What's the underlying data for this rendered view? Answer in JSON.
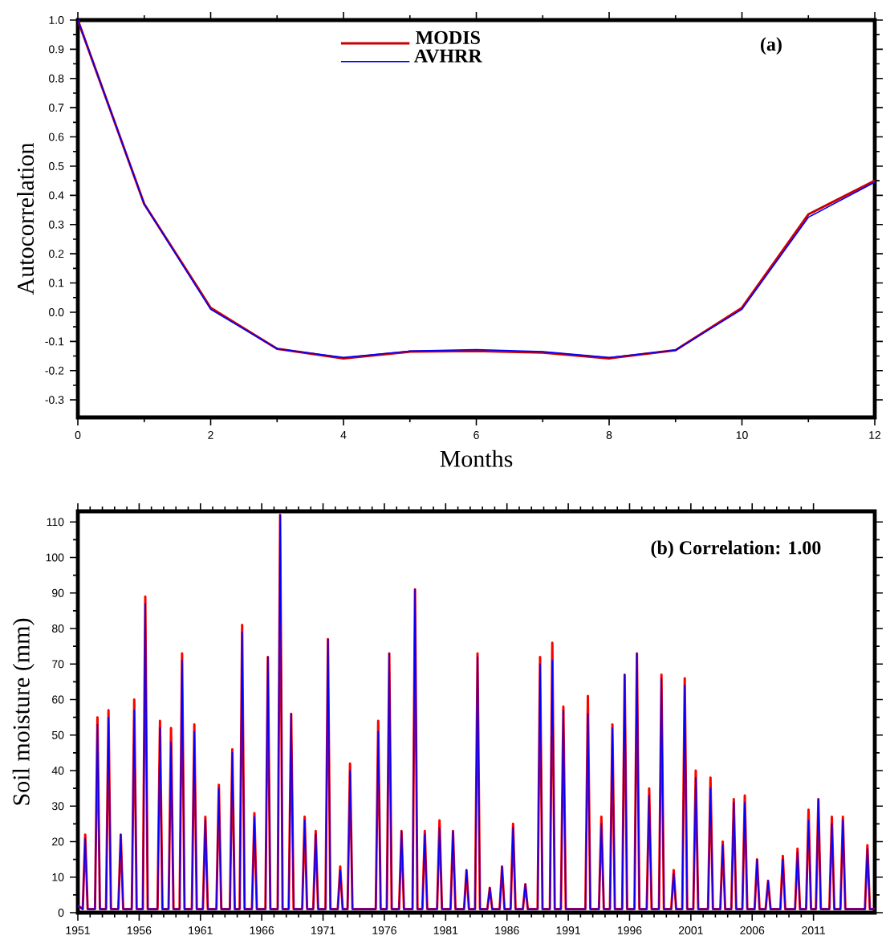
{
  "chart_data": [
    {
      "type": "line",
      "xlabel": "Months",
      "ylabel": "Autocorrelation",
      "annotations": [
        "(a)"
      ],
      "legend": "top",
      "x": [
        0,
        1,
        2,
        3,
        4,
        5,
        6,
        7,
        8,
        9,
        10,
        11,
        12
      ],
      "xlim": [
        0,
        12
      ],
      "xticks": [
        0,
        2,
        4,
        6,
        8,
        10,
        12
      ],
      "ylim": [
        -0.36,
        1.0
      ],
      "yticks": [
        {
          "value": -0.3,
          "label": "-0.3"
        },
        {
          "value": -0.2,
          "label": "-0.2"
        },
        {
          "value": -0.1,
          "label": "-0.1"
        },
        {
          "value": 0,
          "label": "0.0"
        },
        {
          "value": 0.1,
          "label": "0.1"
        },
        {
          "value": 0.2,
          "label": "0.2"
        },
        {
          "value": 0.3,
          "label": "0.3"
        },
        {
          "value": 0.4,
          "label": "0.4"
        },
        {
          "value": 0.5,
          "label": "0.5"
        },
        {
          "value": 0.6,
          "label": "0.6"
        },
        {
          "value": 0.7,
          "label": "0.7"
        },
        {
          "value": 0.8,
          "label": "0.8"
        },
        {
          "value": 0.9,
          "label": "0.9"
        },
        {
          "value": 1.0,
          "label": "1.0"
        }
      ],
      "series": [
        {
          "name": "MODIS",
          "color": "#cc0000",
          "values": [
            1.0,
            0.37,
            0.015,
            -0.125,
            -0.158,
            -0.135,
            -0.133,
            -0.138,
            -0.158,
            -0.13,
            0.015,
            0.335,
            0.45
          ]
        },
        {
          "name": "AVHRR",
          "color": "#0000ff",
          "values": [
            1.0,
            0.37,
            0.01,
            -0.125,
            -0.155,
            -0.133,
            -0.128,
            -0.135,
            -0.155,
            -0.13,
            0.01,
            0.325,
            0.445
          ]
        }
      ]
    },
    {
      "type": "line",
      "ylabel": "Soil moisture (mm)",
      "annotations": [
        "(b) Correlation: 1.00"
      ],
      "x": [
        1951,
        1951.4,
        1951.6,
        1951.8,
        1952.4,
        1952.6,
        1952.8,
        1953.3,
        1953.5,
        1953.7,
        1954.3,
        1954.5,
        1954.7,
        1955.4,
        1955.6,
        1955.8,
        1956.3,
        1956.5,
        1956.7,
        1957.5,
        1957.7,
        1957.9,
        1958.4,
        1958.6,
        1958.8,
        1959.3,
        1959.5,
        1959.7,
        1960.3,
        1960.5,
        1960.7,
        1961.2,
        1961.4,
        1961.6,
        1962.3,
        1962.5,
        1962.7,
        1963.4,
        1963.6,
        1963.8,
        1964.2,
        1964.4,
        1964.6,
        1965.2,
        1965.4,
        1965.6,
        1966.3,
        1966.5,
        1966.7,
        1967.3,
        1967.5,
        1967.7,
        1968.2,
        1968.4,
        1968.6,
        1969.3,
        1969.5,
        1969.7,
        1970.2,
        1970.4,
        1970.6,
        1971.2,
        1971.4,
        1971.6,
        1972.2,
        1972.4,
        1972.6,
        1973.0,
        1973.2,
        1973.4,
        1975.3,
        1975.5,
        1975.7,
        1976.2,
        1976.4,
        1976.6,
        1977.2,
        1977.4,
        1977.6,
        1978.3,
        1978.5,
        1978.7,
        1979.1,
        1979.3,
        1979.5,
        1980.3,
        1980.5,
        1980.7,
        1981.4,
        1981.6,
        1981.8,
        1982.5,
        1982.7,
        1982.9,
        1983.4,
        1983.6,
        1983.8,
        1984.4,
        1984.6,
        1984.8,
        1985.4,
        1985.6,
        1985.8,
        1986.3,
        1986.5,
        1986.7,
        1987.3,
        1987.5,
        1987.7,
        1988.5,
        1988.7,
        1988.9,
        1989.5,
        1989.7,
        1989.9,
        1990.4,
        1990.6,
        1990.8,
        1992.4,
        1992.6,
        1992.8,
        1993.5,
        1993.7,
        1993.9,
        1994.4,
        1994.6,
        1994.8,
        1995.4,
        1995.6,
        1995.8,
        1996.4,
        1996.6,
        1996.8,
        1997.4,
        1997.6,
        1997.8,
        1998.4,
        1998.6,
        1998.8,
        1999.4,
        1999.6,
        1999.8,
        2000.3,
        2000.5,
        2000.7,
        2001.2,
        2001.4,
        2001.6,
        2002.4,
        2002.6,
        2002.8,
        2003.4,
        2003.6,
        2003.8,
        2004.3,
        2004.5,
        2004.7,
        2005.2,
        2005.4,
        2005.6,
        2006.2,
        2006.4,
        2006.6,
        2007.1,
        2007.3,
        2007.5,
        2008.3,
        2008.5,
        2008.7,
        2009.5,
        2009.7,
        2009.9,
        2010.4,
        2010.6,
        2010.8,
        2011.2,
        2011.4,
        2011.6,
        2012.3,
        2012.5,
        2012.7,
        2013.2,
        2013.4,
        2013.6,
        2015.2,
        2015.4,
        2015.6,
        2016
      ],
      "xlim": [
        1951,
        2016
      ],
      "xticks": [
        1951,
        1956,
        1961,
        1966,
        1971,
        1976,
        1981,
        1986,
        1991,
        1996,
        2001,
        2006,
        2011
      ],
      "ylim": [
        0,
        113
      ],
      "yticks": [
        0,
        10,
        20,
        30,
        40,
        50,
        60,
        70,
        80,
        90,
        100,
        110
      ],
      "series": [
        {
          "color": "#ff0000",
          "values": [
            2,
            1,
            22,
            1,
            1,
            55,
            1,
            1,
            57,
            1,
            1,
            22,
            1,
            1,
            60,
            1,
            1,
            89,
            1,
            1,
            54,
            1,
            1,
            52,
            1,
            1,
            73,
            1,
            1,
            53,
            1,
            1,
            27,
            1,
            1,
            36,
            1,
            1,
            46,
            1,
            1,
            81,
            1,
            1,
            28,
            1,
            1,
            72,
            1,
            1,
            112,
            1,
            1,
            56,
            1,
            1,
            27,
            1,
            1,
            23,
            1,
            1,
            77,
            1,
            1,
            13,
            1,
            1,
            42,
            1,
            1,
            54,
            1,
            1,
            73,
            1,
            1,
            23,
            1,
            1,
            91,
            1,
            1,
            23,
            1,
            1,
            26,
            1,
            1,
            23,
            1,
            1,
            12,
            1,
            1,
            73,
            1,
            1,
            7,
            1,
            1,
            13,
            1,
            1,
            25,
            1,
            1,
            8,
            1,
            1,
            72,
            1,
            1,
            76,
            1,
            1,
            58,
            1,
            1,
            61,
            1,
            1,
            27,
            1,
            1,
            53,
            1,
            1,
            67,
            1,
            1,
            73,
            1,
            1,
            35,
            1,
            1,
            67,
            1,
            1,
            12,
            1,
            1,
            66,
            1,
            1,
            40,
            1,
            1,
            38,
            1,
            1,
            20,
            1,
            1,
            32,
            1,
            1,
            33,
            1,
            1,
            15,
            1,
            1,
            9,
            1,
            1,
            16,
            1,
            1,
            18,
            1,
            1,
            29,
            1,
            1,
            32,
            1,
            1,
            27,
            1,
            1,
            27,
            1,
            1,
            19,
            1,
            1
          ]
        },
        {
          "color": "#0000ff",
          "values": [
            2,
            1,
            21,
            1,
            1,
            53,
            1,
            1,
            55,
            1,
            1,
            22,
            1,
            1,
            57,
            1,
            1,
            87,
            1,
            1,
            52,
            1,
            1,
            48,
            1,
            1,
            71,
            1,
            1,
            51,
            1,
            1,
            26,
            1,
            1,
            35,
            1,
            1,
            45,
            1,
            1,
            79,
            1,
            1,
            27,
            1,
            1,
            72,
            1,
            1,
            112,
            1,
            1,
            56,
            1,
            1,
            26,
            1,
            1,
            22,
            1,
            1,
            77,
            1,
            1,
            12,
            1,
            1,
            40,
            1,
            1,
            51,
            1,
            1,
            73,
            1,
            1,
            23,
            1,
            1,
            91,
            1,
            1,
            22,
            1,
            1,
            24,
            1,
            1,
            23,
            1,
            1,
            12,
            1,
            1,
            72,
            1,
            1,
            7,
            1,
            1,
            13,
            1,
            1,
            24,
            1,
            1,
            8,
            1,
            1,
            70,
            1,
            1,
            71,
            1,
            1,
            57,
            1,
            1,
            56,
            1,
            1,
            25,
            1,
            1,
            52,
            1,
            1,
            67,
            1,
            1,
            73,
            1,
            1,
            33,
            1,
            1,
            66,
            1,
            1,
            11,
            1,
            1,
            64,
            1,
            1,
            38,
            1,
            1,
            35,
            1,
            1,
            19,
            1,
            1,
            31,
            1,
            1,
            31,
            1,
            1,
            15,
            1,
            1,
            9,
            1,
            1,
            15,
            1,
            1,
            17,
            1,
            1,
            26,
            1,
            1,
            32,
            1,
            1,
            25,
            1,
            1,
            26,
            1,
            1,
            18,
            1,
            1
          ]
        }
      ]
    }
  ]
}
